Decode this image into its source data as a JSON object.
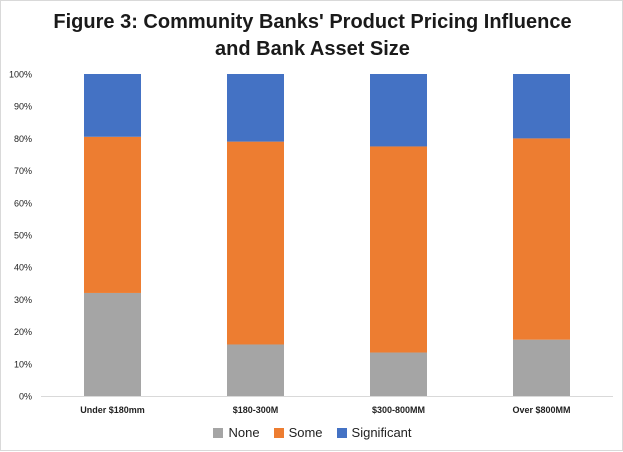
{
  "chart_data": {
    "type": "bar",
    "stacked": true,
    "title_line1": "Figure 3: Community Banks' Product Pricing Influence",
    "title_line2": "and Bank Asset Size",
    "categories": [
      "Under $180mm",
      "$180-300M",
      "$300-800MM",
      "Over $800MM"
    ],
    "series": [
      {
        "name": "None",
        "color": "#a5a5a5",
        "values": [
          32.0,
          16.0,
          13.5,
          17.5
        ]
      },
      {
        "name": "Some",
        "color": "#ed7d31",
        "values": [
          48.5,
          63.0,
          64.0,
          62.5
        ]
      },
      {
        "name": "Significant",
        "color": "#4472c4",
        "values": [
          19.5,
          21.0,
          22.5,
          20.0
        ]
      }
    ],
    "yticks": [
      "0%",
      "10%",
      "20%",
      "30%",
      "40%",
      "50%",
      "60%",
      "70%",
      "80%",
      "90%",
      "100%"
    ],
    "ylim": [
      0,
      100
    ],
    "grid": false,
    "legend_position": "bottom"
  }
}
